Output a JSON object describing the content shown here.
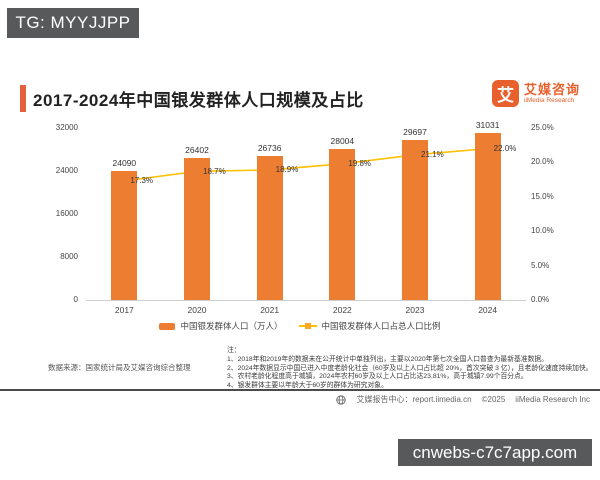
{
  "watermark_top": "TG: MYYJJPP",
  "watermark_bottom": "cnwebs-c7c7app.com",
  "header": {
    "title": "2017-2024年中国银发群体人口规模及占比",
    "logo": {
      "icon_char": "艾",
      "name_cn": "艾媒咨询",
      "name_en": "iiMedia Research"
    }
  },
  "chart_data": {
    "type": "bar",
    "categories": [
      "2017",
      "2020",
      "2021",
      "2022",
      "2023",
      "2024"
    ],
    "series": [
      {
        "name": "中国银发群体人口（万人）",
        "type": "bar",
        "color": "#ed7d31",
        "values": [
          24090,
          26402,
          26736,
          28004,
          29697,
          31031
        ]
      },
      {
        "name": "中国银发群体人口占总人口比例",
        "type": "line",
        "color": "#ffc000",
        "marker_color": "#f9a825",
        "values": [
          17.3,
          18.7,
          18.9,
          19.8,
          21.1,
          22.0
        ],
        "unit": "%"
      }
    ],
    "point_labels": [
      "17.3%",
      "18.7%",
      "18.9%",
      "19.8%",
      "21.1%",
      "22.0%"
    ],
    "left_axis": {
      "ticks": [
        "0",
        "8000",
        "16000",
        "24000",
        "32000"
      ],
      "min": 0,
      "max": 32000
    },
    "right_axis": {
      "ticks": [
        "0.0%",
        "5.0%",
        "10.0%",
        "15.0%",
        "20.0%",
        "25.0%"
      ],
      "min": 0,
      "max": 25
    },
    "grid": false,
    "legend_position": "bottom"
  },
  "source": "数据来源：国家统计局及艾媒咨询综合整理",
  "notes": {
    "heading": "注：",
    "items": [
      "1、2018年和2019年的数据未在公开统计中单独列出，主要以2020年第七次全国人口普查为最新基准数据。",
      "2、2024年数据显示中国已进入中度老龄化社会（60岁及以上人口占比超 20%，首次突破 3 亿），且老龄化速度持续加快。",
      "3、农村老龄化程度高于城镇，2024年农村60岁及以上人口占比达23.81%，高于城镇7.99个百分点。",
      "4、银发群体主要以年龄大于60岁的群体为研究对象。"
    ]
  },
  "footer": {
    "center_label": "艾媒报告中心：report.iimedia.cn",
    "copyright": "©2025",
    "company": "iiMedia Research Inc"
  }
}
